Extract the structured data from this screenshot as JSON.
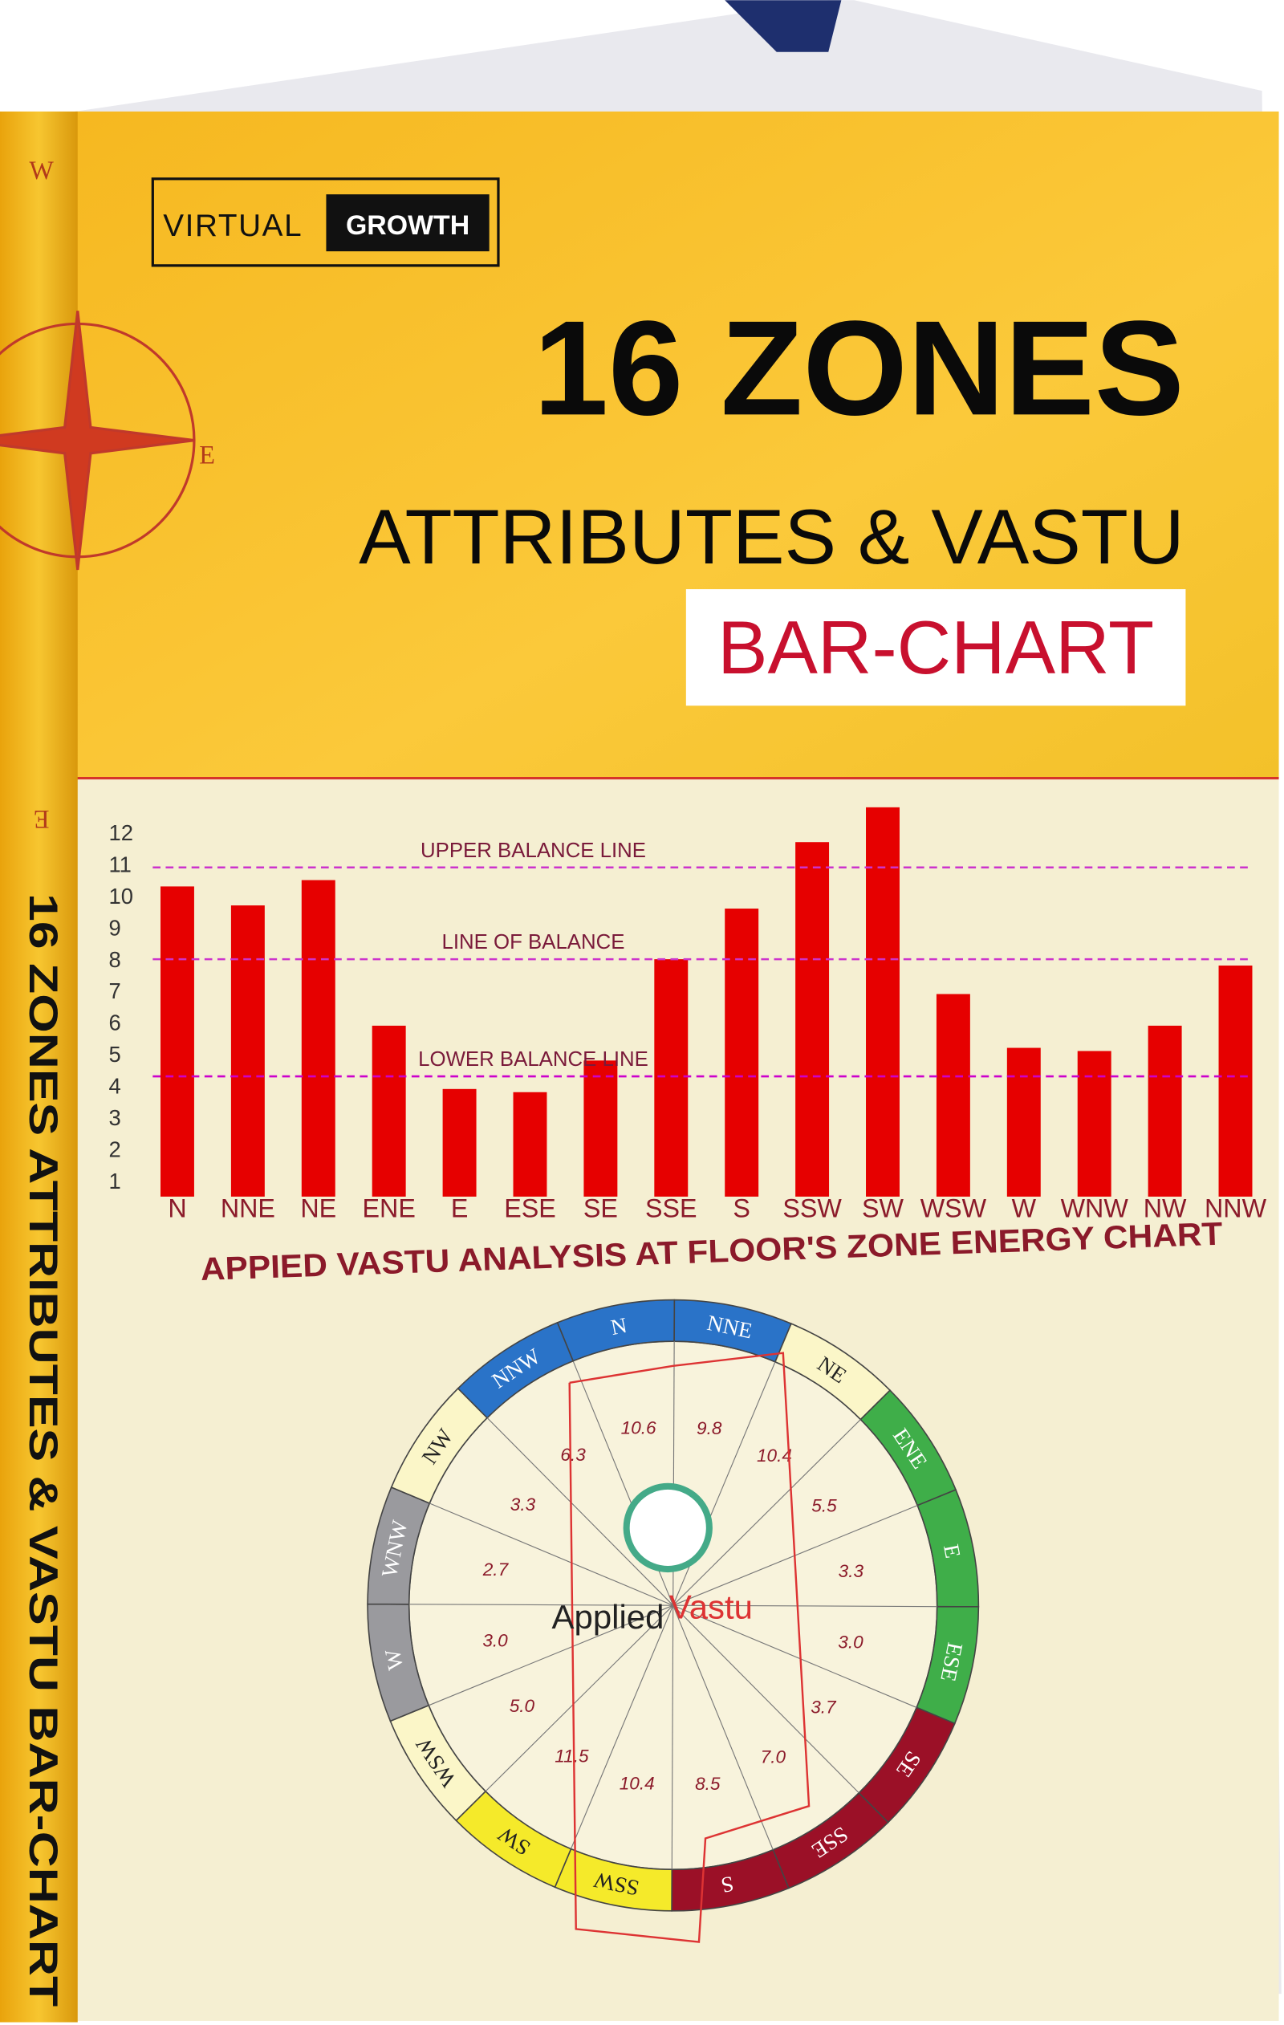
{
  "cover": {
    "brand_left": "VIRTUAL",
    "brand_right": "GROWTH",
    "title": "16 ZONES",
    "subtitle": "ATTRIBUTES & VASTU",
    "tag": "BAR-CHART",
    "spine": "16 ZONES ATTRIBUTES & VASTU BAR-CHART",
    "compass": [
      "W",
      "E",
      "E"
    ]
  },
  "chart_data": {
    "type": "bar",
    "title": "APPIED VASTU ANALYSIS AT FLOOR'S ZONE ENERGY CHART",
    "categories": [
      "N",
      "NNE",
      "NE",
      "ENE",
      "E",
      "ESE",
      "SE",
      "SSE",
      "S",
      "SSW",
      "SW",
      "WSW",
      "W",
      "WNW",
      "NW",
      "NNW"
    ],
    "values": [
      10.3,
      9.7,
      10.5,
      5.9,
      3.9,
      3.8,
      4.8,
      8.0,
      9.6,
      11.7,
      12.8,
      6.9,
      5.2,
      5.1,
      5.9,
      7.8
    ],
    "color": "#e60000",
    "ylim": [
      0.5,
      13
    ],
    "yticks": [
      1,
      2,
      3,
      4,
      5,
      6,
      7,
      8,
      9,
      10,
      11,
      12
    ],
    "annotations": [
      {
        "label": "UPPER BALANCE LINE",
        "value": 10.9,
        "color": "#cc33cc"
      },
      {
        "label": "LINE OF BALANCE",
        "value": 8.0,
        "color": "#cc33cc"
      },
      {
        "label": "LOWER BALANCE LINE",
        "value": 4.3,
        "color": "#cc00cc"
      }
    ]
  },
  "wheel": {
    "logo_left": "Applied",
    "logo_right": "Vastu",
    "zones": [
      {
        "label": "N",
        "value": "10.6",
        "color": "#2a73c8"
      },
      {
        "label": "NNE",
        "value": "9.8",
        "color": "#2a73c8"
      },
      {
        "label": "NE",
        "value": "10.4",
        "color": "#fbf6c8"
      },
      {
        "label": "ENE",
        "value": "5.5",
        "color": "#3fae49"
      },
      {
        "label": "E",
        "value": "3.3",
        "color": "#3fae49"
      },
      {
        "label": "ESE",
        "value": "3.0",
        "color": "#3fae49"
      },
      {
        "label": "SE",
        "value": "3.7",
        "color": "#9b1027"
      },
      {
        "label": "SSE",
        "value": "7.0",
        "color": "#9b1027"
      },
      {
        "label": "S",
        "value": "8.5",
        "color": "#9b1027"
      },
      {
        "label": "SSW",
        "value": "10.4",
        "color": "#f5ea2a"
      },
      {
        "label": "SW",
        "value": "11.5",
        "color": "#f5ea2a"
      },
      {
        "label": "WSW",
        "value": "5.0",
        "color": "#fbf6c8"
      },
      {
        "label": "W",
        "value": "3.0",
        "color": "#9a9a9e"
      },
      {
        "label": "WNW",
        "value": "2.7",
        "color": "#9a9a9e"
      },
      {
        "label": "NW",
        "value": "3.3",
        "color": "#fbf6c8"
      },
      {
        "label": "NNW",
        "value": "6.3",
        "color": "#2a73c8"
      }
    ]
  }
}
